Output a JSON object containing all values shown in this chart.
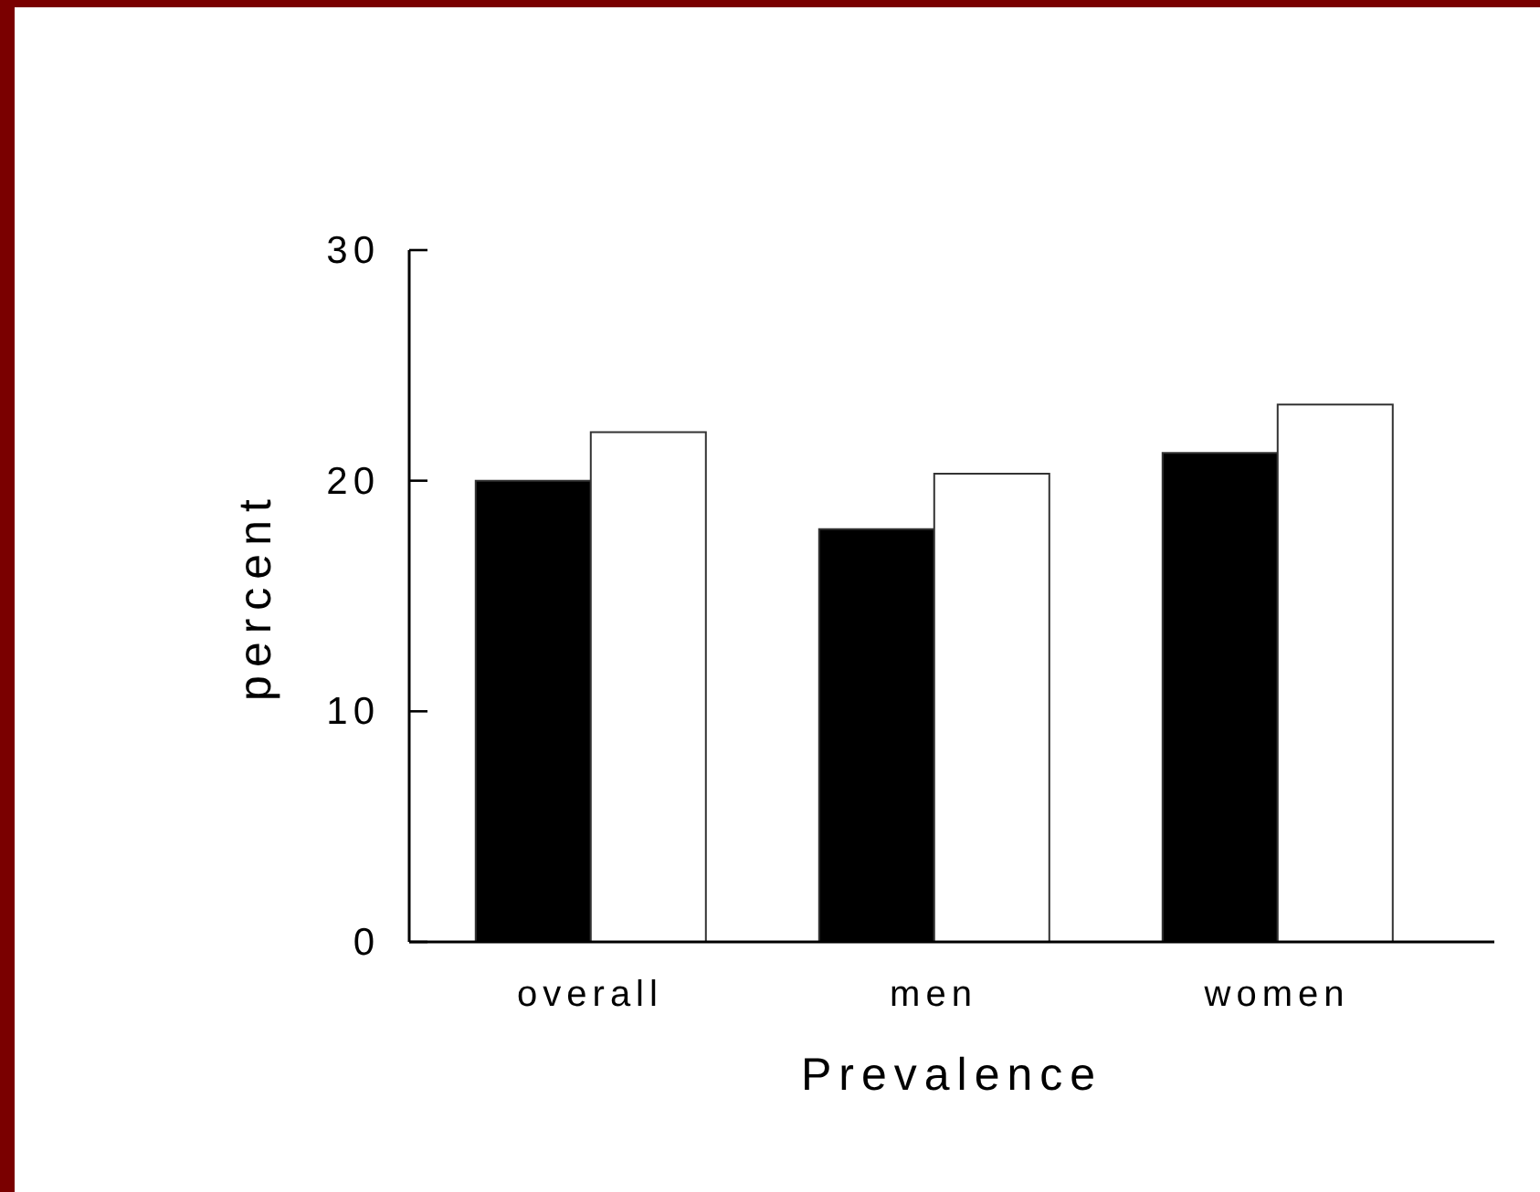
{
  "chart_data": {
    "type": "bar",
    "categories": [
      "overall",
      "men",
      "women"
    ],
    "series": [
      {
        "color": "#000000",
        "values": [
          20,
          17.9,
          21.2
        ]
      },
      {
        "color": "#ffffff",
        "values": [
          22.1,
          20.3,
          23.3
        ]
      }
    ],
    "xlabel": "Prevalence",
    "ylabel": "percent",
    "ylim": [
      0,
      30
    ],
    "yticks": [
      0,
      10,
      20,
      30
    ]
  }
}
